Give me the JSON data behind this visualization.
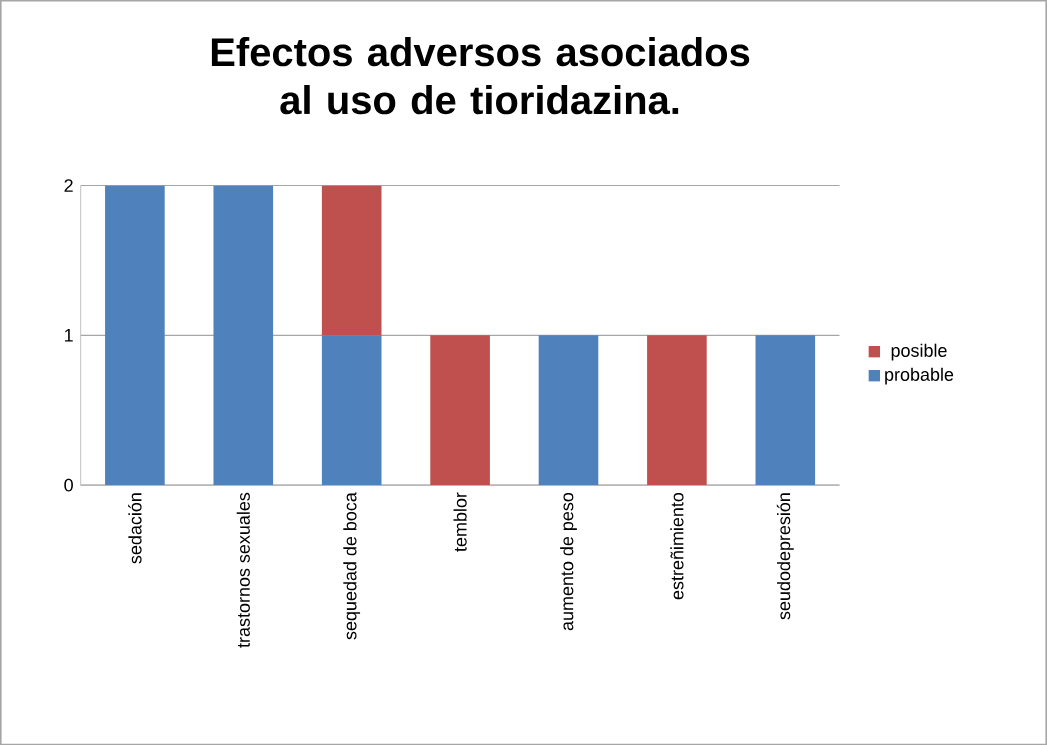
{
  "chart_data": {
    "type": "bar",
    "title": "Efectos adversos asociados al uso de tioridazina.",
    "categories": [
      "sedación",
      "trastornos sexuales",
      "sequedad de boca",
      "temblor",
      "aumento de peso",
      "estreñimiento",
      "seudodepresión"
    ],
    "series": [
      {
        "name": "probable",
        "color": "#4f81bd",
        "values": [
          2,
          2,
          1,
          0,
          1,
          0,
          1
        ]
      },
      {
        "name": "posible",
        "color": "#c0504d",
        "values": [
          0,
          0,
          1,
          1,
          0,
          1,
          0
        ]
      }
    ],
    "stacked": true,
    "ylim": [
      0,
      2
    ],
    "yticks": [
      0,
      1,
      2
    ],
    "grid": "y",
    "legend": "right"
  }
}
